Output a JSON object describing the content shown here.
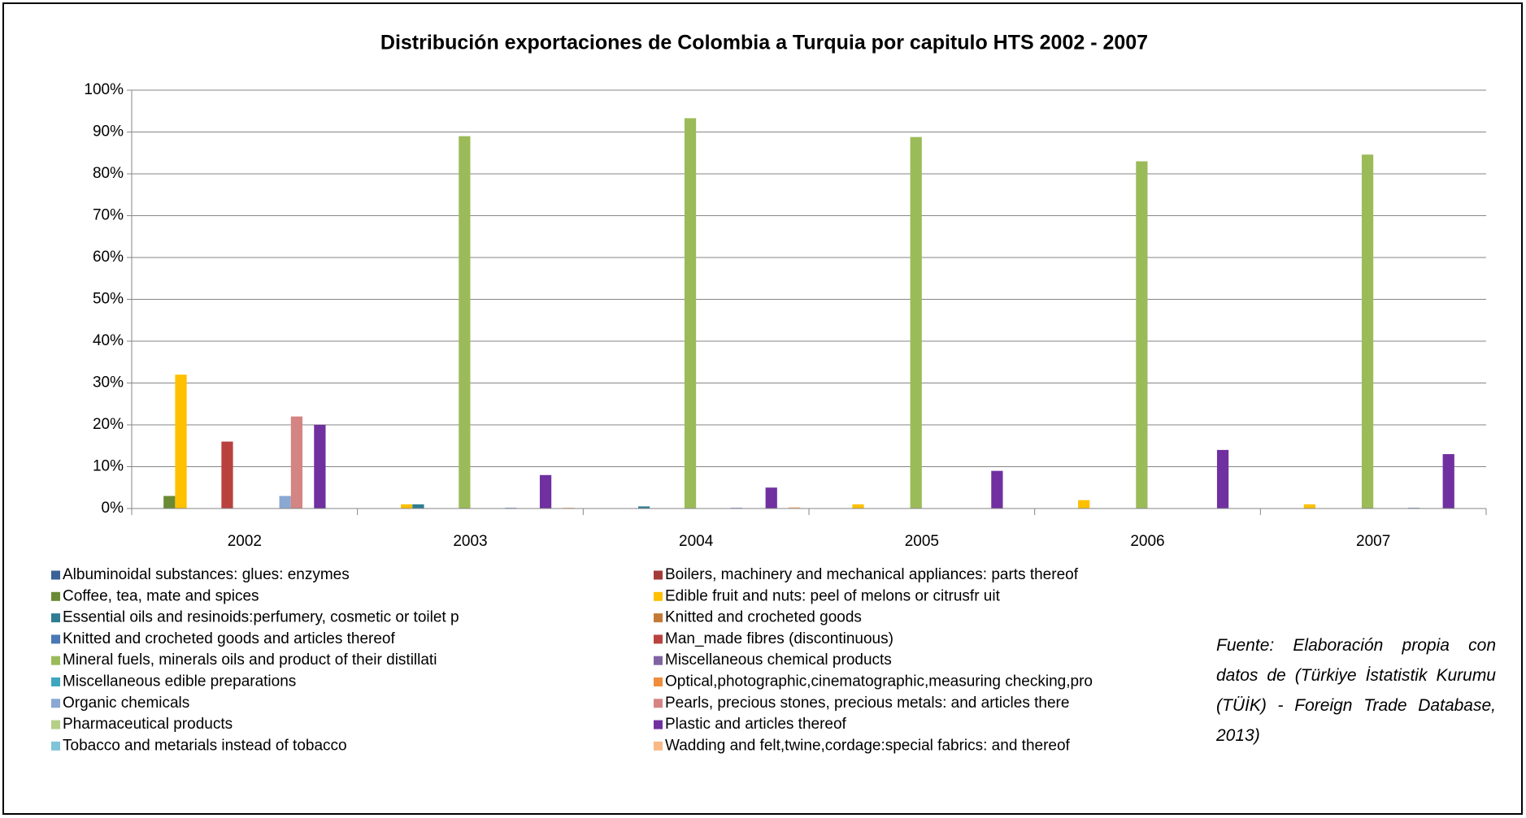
{
  "chart_data": {
    "type": "bar",
    "title": "Distribución exportaciones de Colombia a Turquia por capitulo HTS 2002 - 2007",
    "categories": [
      "2002",
      "2003",
      "2004",
      "2005",
      "2006",
      "2007"
    ],
    "series": [
      {
        "name": "Albuminoidal substances: glues: enzymes",
        "color": "#3B6196",
        "values": [
          0,
          0,
          0,
          0,
          0,
          0
        ]
      },
      {
        "name": "Boilers, machinery and mechanical appliances: parts thereof",
        "color": "#A33B38",
        "values": [
          0,
          0,
          0,
          0,
          0,
          0
        ]
      },
      {
        "name": "Coffee, tea, mate and spices",
        "color": "#6B8A35",
        "values": [
          3,
          0,
          0,
          0,
          0,
          0
        ]
      },
      {
        "name": "Edible fruit and nuts: peel of melons or citrusfr uit",
        "color": "#FFC000",
        "values": [
          32,
          1,
          0,
          1,
          2,
          1
        ]
      },
      {
        "name": "Essential oils and resinoids:perfumery, cosmetic or toilet p",
        "color": "#2E7D92",
        "values": [
          0,
          1,
          0.5,
          0,
          0,
          0
        ]
      },
      {
        "name": "Knitted and crocheted goods",
        "color": "#C47A36",
        "values": [
          0,
          0,
          0,
          0,
          0,
          0
        ]
      },
      {
        "name": "Knitted and crocheted goods and articles thereof",
        "color": "#4A78B4",
        "values": [
          0,
          0,
          0,
          0,
          0,
          0
        ]
      },
      {
        "name": "Man_made fibres (discontinuous)",
        "color": "#B9413E",
        "values": [
          16,
          0,
          0,
          0,
          0,
          0
        ]
      },
      {
        "name": "Mineral fuels, minerals oils and product of their distillati",
        "color": "#9BBB59",
        "values": [
          0,
          89,
          93.3,
          88.8,
          83,
          84.6
        ]
      },
      {
        "name": "Miscellaneous chemical products",
        "color": "#8064A2",
        "values": [
          0,
          0,
          0,
          0,
          0,
          0
        ]
      },
      {
        "name": "Miscellaneous edible preparations",
        "color": "#3FA6C0",
        "values": [
          0,
          0,
          0,
          0,
          0,
          0
        ]
      },
      {
        "name": "Optical,photographic,cinematographic,measuring checking,pro",
        "color": "#F08C3C",
        "values": [
          0,
          0,
          0,
          0,
          0,
          0
        ]
      },
      {
        "name": "Organic chemicals",
        "color": "#8AA8D2",
        "values": [
          3,
          0.2,
          0.2,
          0,
          0,
          0.2
        ]
      },
      {
        "name": "Pearls, precious stones, precious metals: and articles there",
        "color": "#D48482",
        "values": [
          22,
          0,
          0,
          0,
          0,
          0
        ]
      },
      {
        "name": "Pharmaceutical products",
        "color": "#B5CF88",
        "values": [
          0,
          0,
          0,
          0,
          0,
          0
        ]
      },
      {
        "name": "Plastic and articles thereof",
        "color": "#7030A0",
        "values": [
          20,
          8,
          5,
          9,
          14,
          13
        ]
      },
      {
        "name": "Tobacco and metarials instead of tobacco",
        "color": "#80C4D8",
        "values": [
          0,
          0,
          0,
          0,
          0,
          0
        ]
      },
      {
        "name": "Wadding and felt,twine,cordage:special fabrics: and thereof",
        "color": "#F9B987",
        "values": [
          0,
          0.2,
          0.3,
          0,
          0,
          0
        ]
      }
    ],
    "ylim": [
      0,
      100
    ],
    "yticks": [
      {
        "value": 0,
        "label": "0%"
      },
      {
        "value": 10,
        "label": "10%"
      },
      {
        "value": 20,
        "label": "20%"
      },
      {
        "value": 30,
        "label": "30%"
      },
      {
        "value": 40,
        "label": "40%"
      },
      {
        "value": 50,
        "label": "50%"
      },
      {
        "value": 60,
        "label": "60%"
      },
      {
        "value": 70,
        "label": "70%"
      },
      {
        "value": 80,
        "label": "80%"
      },
      {
        "value": 90,
        "label": "90%"
      },
      {
        "value": 100,
        "label": "100%"
      }
    ],
    "grid": true,
    "legend": "bottom",
    "annotation": "Fuente: Elaboración propia con datos de (Türkiye İstatistik Kurumu (TÜİK) - Foreign Trade Database, 2013)"
  }
}
